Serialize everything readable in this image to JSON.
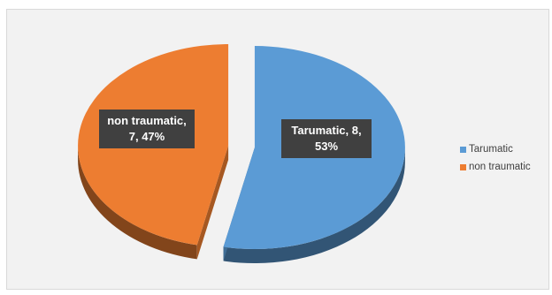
{
  "chart_data": {
    "type": "pie",
    "style": "3d-exploded",
    "categories": [
      "Tarumatic",
      "non traumatic"
    ],
    "values": [
      8,
      7
    ],
    "percentages": [
      53,
      47
    ],
    "colors": [
      "#5b9bd5",
      "#ed7d31"
    ],
    "data_labels": [
      {
        "lines": [
          "Tarumatic, 8,",
          "53%"
        ]
      },
      {
        "lines": [
          "non traumatic,",
          "7, 47%"
        ]
      }
    ],
    "legend": {
      "position": "right",
      "entries": [
        "Tarumatic",
        "non traumatic"
      ]
    }
  }
}
